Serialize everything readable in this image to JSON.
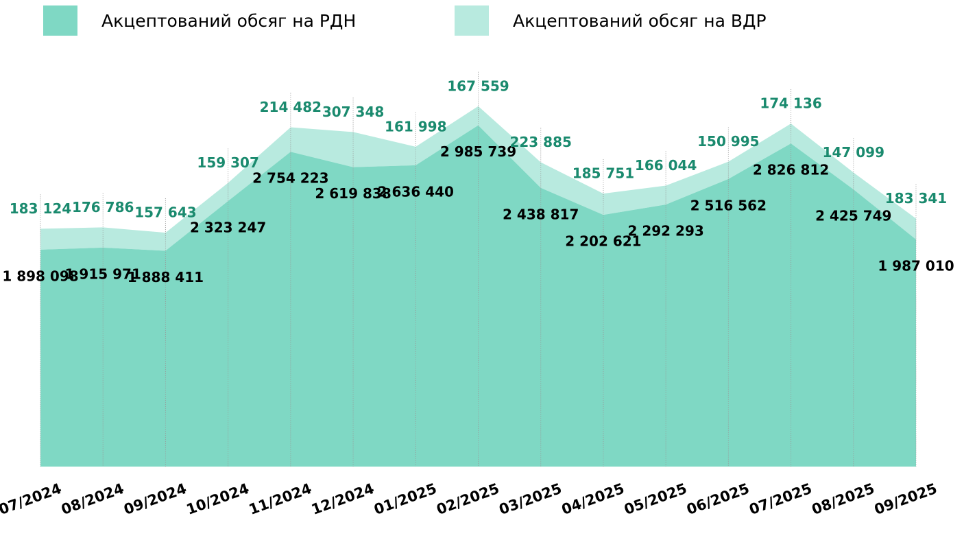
{
  "chart_data": {
    "type": "stacked_area",
    "categories": [
      "07/2024",
      "08/2024",
      "09/2024",
      "10/2024",
      "11/2024",
      "12/2024",
      "01/2025",
      "02/2025",
      "03/2025",
      "04/2025",
      "05/2025",
      "06/2025",
      "07/2025",
      "08/2025",
      "09/2025"
    ],
    "series": [
      {
        "name": "Акцептований обсяг на РДН",
        "color": "#7fd8c4",
        "label_color": "#000000",
        "values": [
          1898098,
          1915971,
          1888411,
          2323247,
          2754223,
          2619838,
          2636440,
          2985739,
          2438817,
          2202621,
          2292293,
          2516562,
          2826812,
          2425749,
          1987010
        ],
        "value_labels": [
          "1 898 098",
          "1 915 971",
          "1 888 411",
          "2 323 247",
          "2 754 223",
          "2 619 838",
          "2 636 440",
          "2 985 739",
          "2 438 817",
          "2 202 621",
          "2 292 293",
          "2 516 562",
          "2 826 812",
          "2 425 749",
          "1 987 010"
        ]
      },
      {
        "name": "Акцептований обсяг на ВДР",
        "color": "#b8eadf",
        "label_color": "#1a8a6e",
        "values": [
          183124,
          176786,
          157643,
          159307,
          214482,
          307348,
          161998,
          167559,
          223885,
          185751,
          166044,
          150995,
          174136,
          147099,
          183341
        ],
        "value_labels": [
          "183 124",
          "176 786",
          "157 643",
          "159 307",
          "214 482",
          "307 348",
          "161 998",
          "167 559",
          "223 885",
          "185 751",
          "166 044",
          "150 995",
          "174 136",
          "147 099",
          "183 341"
        ]
      }
    ],
    "ylim": [
      0,
      3500000
    ]
  }
}
